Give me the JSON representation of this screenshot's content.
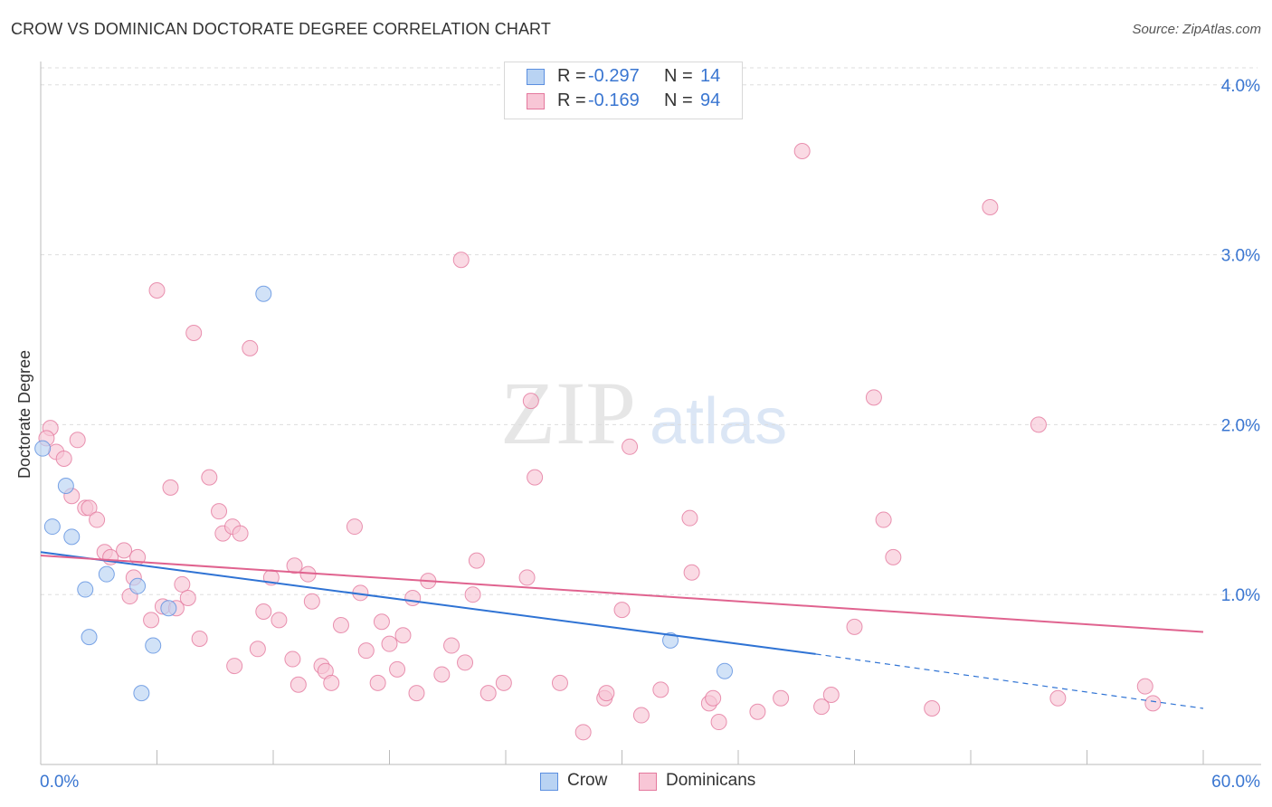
{
  "title": "CROW VS DOMINICAN DOCTORATE DEGREE CORRELATION CHART",
  "source": "Source: ZipAtlas.com",
  "colors": {
    "crow": "#5b8fe0",
    "crow_fill": "#b9d3f3",
    "crow_line": "#2f73d4",
    "dominicans": "#e4789d",
    "dominicans_fill": "#f8c6d6",
    "dominicans_line": "#e0638f",
    "tick_label": "#3a76d1",
    "grid": "#dddddd"
  },
  "legend": {
    "rows": [
      {
        "r_label": "R =",
        "r_value": "-0.297",
        "n_label": "N =",
        "n_value": "14"
      },
      {
        "r_label": "R =",
        "r_value": "-0.169",
        "n_label": "N =",
        "n_value": "94"
      }
    ]
  },
  "bottom_legend": {
    "crow": "Crow",
    "dominicans": "Dominicans"
  },
  "watermark": {
    "zip": "ZIP",
    "atlas": "atlas"
  },
  "chart_data": {
    "type": "scatter",
    "ylabel": "Doctorate Degree",
    "xlim": [
      0,
      60
    ],
    "ylim": [
      0,
      4.1
    ],
    "x_tick_labels": [
      "0.0%",
      "60.0%"
    ],
    "y_ticks": [
      1,
      2,
      3,
      4
    ],
    "y_tick_labels": [
      "1.0%",
      "2.0%",
      "3.0%",
      "4.0%"
    ],
    "series": [
      {
        "name": "Crow",
        "r": -0.297,
        "n": 14,
        "trend": {
          "x0": 0,
          "y0": 1.25,
          "x1": 40,
          "y1": 0.65,
          "dashed_to_x": 60,
          "dashed_to_y": 0.33
        },
        "points": [
          [
            0.1,
            1.86
          ],
          [
            1.3,
            1.64
          ],
          [
            0.6,
            1.4
          ],
          [
            1.6,
            1.34
          ],
          [
            3.4,
            1.12
          ],
          [
            2.3,
            1.03
          ],
          [
            5.0,
            1.05
          ],
          [
            6.6,
            0.92
          ],
          [
            11.5,
            2.77
          ],
          [
            2.5,
            0.75
          ],
          [
            5.8,
            0.7
          ],
          [
            5.2,
            0.42
          ],
          [
            32.5,
            0.73
          ],
          [
            35.3,
            0.55
          ]
        ]
      },
      {
        "name": "Dominicans",
        "r": -0.169,
        "n": 94,
        "trend": {
          "x0": 0,
          "y0": 1.23,
          "x1": 60,
          "y1": 0.78
        },
        "points": [
          [
            0.5,
            1.98
          ],
          [
            0.3,
            1.92
          ],
          [
            1.9,
            1.91
          ],
          [
            0.8,
            1.84
          ],
          [
            1.2,
            1.8
          ],
          [
            1.6,
            1.58
          ],
          [
            2.3,
            1.51
          ],
          [
            2.5,
            1.51
          ],
          [
            2.9,
            1.44
          ],
          [
            3.3,
            1.25
          ],
          [
            3.6,
            1.22
          ],
          [
            4.3,
            1.26
          ],
          [
            5.0,
            1.22
          ],
          [
            4.8,
            1.1
          ],
          [
            4.6,
            0.99
          ],
          [
            5.7,
            0.85
          ],
          [
            6.3,
            0.93
          ],
          [
            6.0,
            2.79
          ],
          [
            6.7,
            1.63
          ],
          [
            7.0,
            0.92
          ],
          [
            7.3,
            1.06
          ],
          [
            7.6,
            0.98
          ],
          [
            7.9,
            2.54
          ],
          [
            8.2,
            0.74
          ],
          [
            8.7,
            1.69
          ],
          [
            9.2,
            1.49
          ],
          [
            9.4,
            1.36
          ],
          [
            9.9,
            1.4
          ],
          [
            10.3,
            1.36
          ],
          [
            10.8,
            2.45
          ],
          [
            10.0,
            0.58
          ],
          [
            11.2,
            0.68
          ],
          [
            11.5,
            0.9
          ],
          [
            11.9,
            1.1
          ],
          [
            12.3,
            0.85
          ],
          [
            13.0,
            0.62
          ],
          [
            13.3,
            0.47
          ],
          [
            13.1,
            1.17
          ],
          [
            13.8,
            1.12
          ],
          [
            14.0,
            0.96
          ],
          [
            14.5,
            0.58
          ],
          [
            14.7,
            0.55
          ],
          [
            15.0,
            0.48
          ],
          [
            15.5,
            0.82
          ],
          [
            16.2,
            1.4
          ],
          [
            16.5,
            1.01
          ],
          [
            16.8,
            0.67
          ],
          [
            17.6,
            0.84
          ],
          [
            17.4,
            0.48
          ],
          [
            18.0,
            0.71
          ],
          [
            18.4,
            0.56
          ],
          [
            18.7,
            0.76
          ],
          [
            19.2,
            0.98
          ],
          [
            19.4,
            0.42
          ],
          [
            20.0,
            1.08
          ],
          [
            20.7,
            0.53
          ],
          [
            21.2,
            0.7
          ],
          [
            21.7,
            2.97
          ],
          [
            21.9,
            0.6
          ],
          [
            22.3,
            1.0
          ],
          [
            22.5,
            1.2
          ],
          [
            23.1,
            0.42
          ],
          [
            23.9,
            0.48
          ],
          [
            25.1,
            1.1
          ],
          [
            25.3,
            2.14
          ],
          [
            25.5,
            1.69
          ],
          [
            26.8,
            0.48
          ],
          [
            28.0,
            0.19
          ],
          [
            29.1,
            0.39
          ],
          [
            29.2,
            0.42
          ],
          [
            30.0,
            0.91
          ],
          [
            31.0,
            0.29
          ],
          [
            30.4,
            1.87
          ],
          [
            32.0,
            0.44
          ],
          [
            33.5,
            1.45
          ],
          [
            33.6,
            1.13
          ],
          [
            34.5,
            0.36
          ],
          [
            34.7,
            0.39
          ],
          [
            35.0,
            0.25
          ],
          [
            37.0,
            0.31
          ],
          [
            38.2,
            0.39
          ],
          [
            39.3,
            3.61
          ],
          [
            40.3,
            0.34
          ],
          [
            40.8,
            0.41
          ],
          [
            42.0,
            0.81
          ],
          [
            43.0,
            2.16
          ],
          [
            43.5,
            1.44
          ],
          [
            44.0,
            1.22
          ],
          [
            46.0,
            0.33
          ],
          [
            49.0,
            3.28
          ],
          [
            51.5,
            2.0
          ],
          [
            52.5,
            0.39
          ],
          [
            57.0,
            0.46
          ],
          [
            57.4,
            0.36
          ]
        ]
      }
    ]
  }
}
